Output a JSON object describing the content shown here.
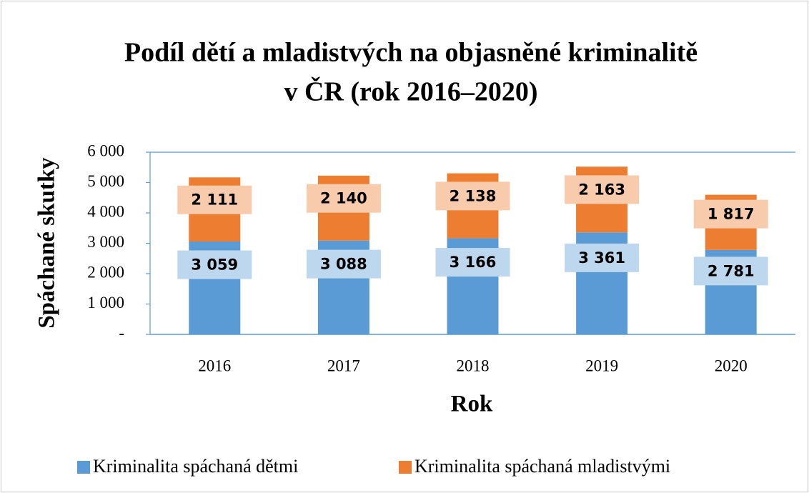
{
  "chart_data": {
    "type": "stacked_bar",
    "title": [
      "Podíl dětí a mladistvých na objasněné kriminalitě",
      "v ČR (rok 2016–2020)"
    ],
    "x_label": "Rok",
    "y_label": "Spáchané skutky",
    "categories": [
      "2016",
      "2017",
      "2018",
      "2019",
      "2020"
    ],
    "series": [
      {
        "name": "Kriminalita spáchaná dětmi",
        "color": "#5b9bd5",
        "label_bg": "#bdd7ee",
        "values": [
          3059,
          3088,
          3166,
          3361,
          2781
        ],
        "value_labels": [
          "3 059",
          "3 088",
          "3 166",
          "3 361",
          "2 781"
        ]
      },
      {
        "name": "Kriminalita spáchaná mladistvými",
        "color": "#ed7d31",
        "label_bg": "#f8cbad",
        "values": [
          2111,
          2140,
          2138,
          2163,
          1817
        ],
        "value_labels": [
          "2 111",
          "2 140",
          "2 138",
          "2 163",
          "1 817"
        ]
      }
    ],
    "ylim": [
      0,
      6000
    ],
    "yticks": [
      {
        "value": 0,
        "label": "-"
      },
      {
        "value": 1000,
        "label": "1 000"
      },
      {
        "value": 2000,
        "label": "2 000"
      },
      {
        "value": 3000,
        "label": "3 000"
      },
      {
        "value": 4000,
        "label": "4 000"
      },
      {
        "value": 5000,
        "label": "5 000"
      },
      {
        "value": 6000,
        "label": "6 000"
      }
    ],
    "grid": false,
    "legend": "bottom"
  }
}
